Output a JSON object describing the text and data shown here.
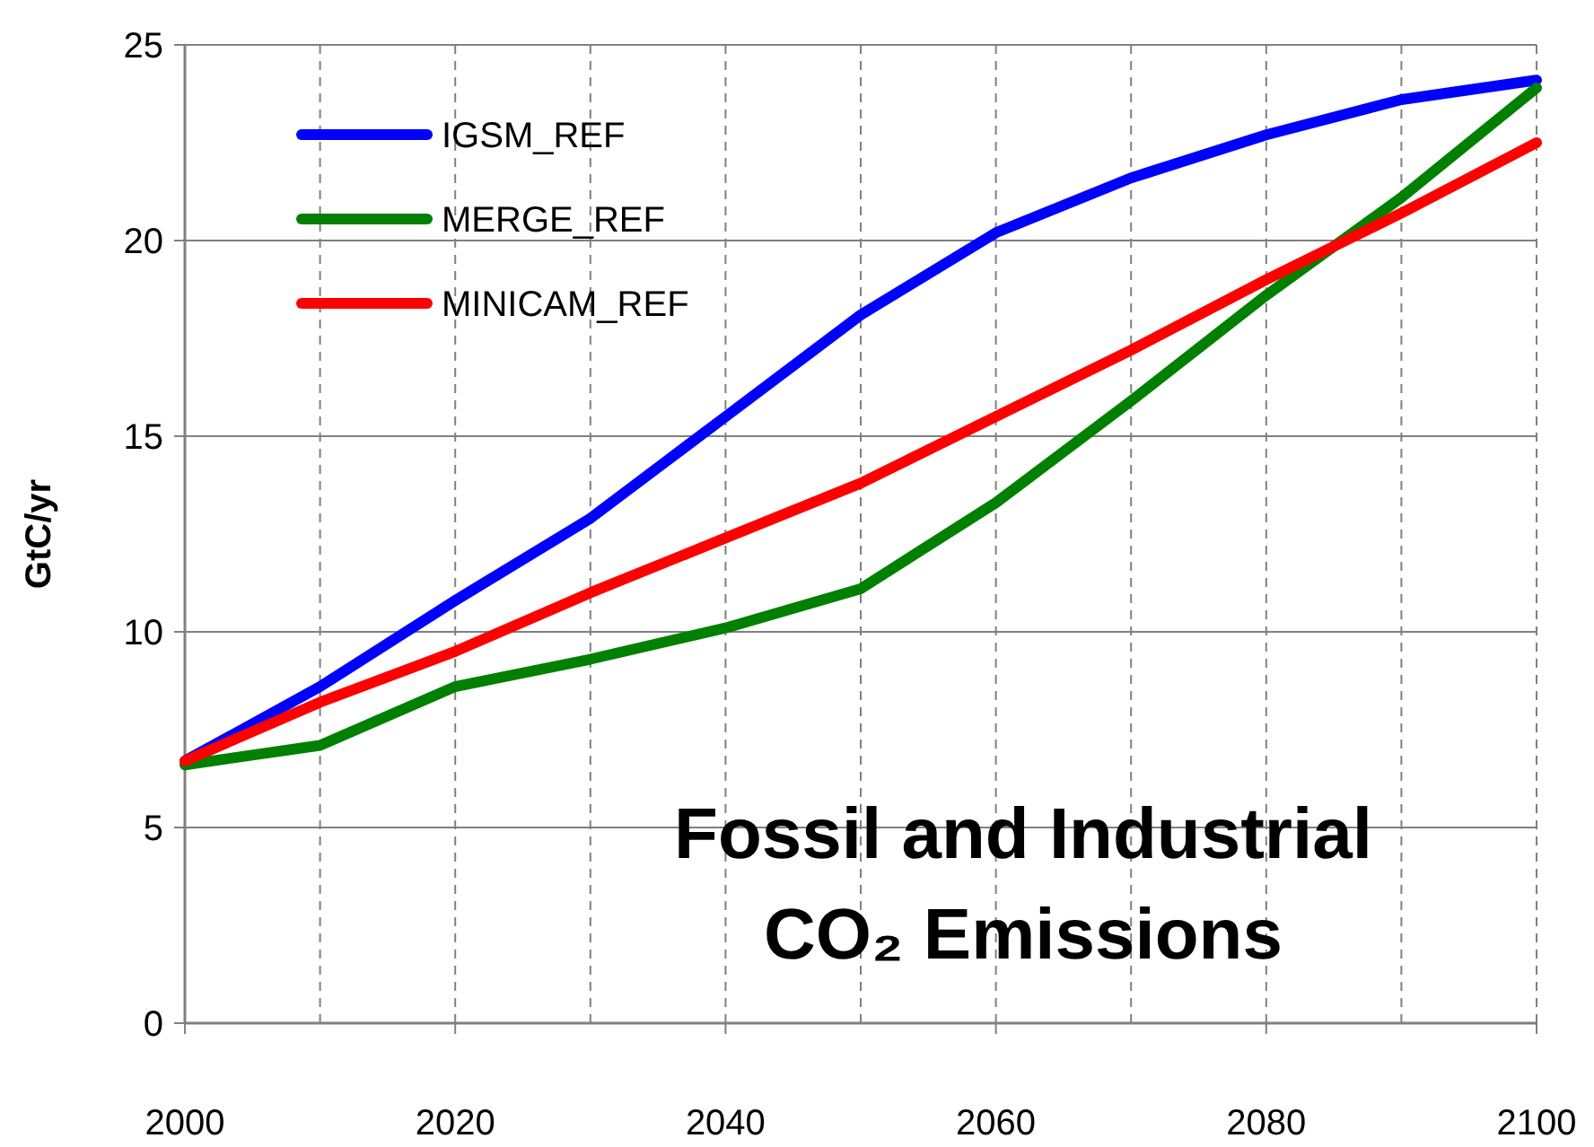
{
  "chart_data": {
    "type": "line",
    "title": "Fossil and Industrial\nCO₂ Emissions",
    "ylabel": "GtC/yr",
    "x": [
      2000,
      2010,
      2020,
      2030,
      2040,
      2050,
      2060,
      2070,
      2080,
      2090,
      2100
    ],
    "series": [
      {
        "name": "IGSM_REF",
        "color": "#0000ff",
        "values": [
          6.7,
          8.6,
          10.8,
          12.9,
          15.5,
          18.1,
          20.2,
          21.6,
          22.7,
          23.6,
          24.1
        ]
      },
      {
        "name": "MERGE_REF",
        "color": "#008000",
        "values": [
          6.6,
          7.1,
          8.6,
          9.3,
          10.1,
          11.1,
          13.3,
          15.9,
          18.6,
          21.1,
          23.9
        ]
      },
      {
        "name": "MINICAM_REF",
        "color": "#ff0000",
        "values": [
          6.7,
          8.2,
          9.5,
          11.0,
          12.4,
          13.8,
          15.5,
          17.2,
          19.0,
          20.7,
          22.5
        ]
      }
    ],
    "xlim": [
      2000,
      2100
    ],
    "xticks": [
      2000,
      2020,
      2040,
      2060,
      2080,
      2100
    ],
    "ylim": [
      0,
      25
    ],
    "yticks": [
      0,
      5,
      10,
      15,
      20,
      25
    ],
    "grid": true,
    "legend": "top left",
    "marker": "none",
    "line_style": "solid"
  }
}
